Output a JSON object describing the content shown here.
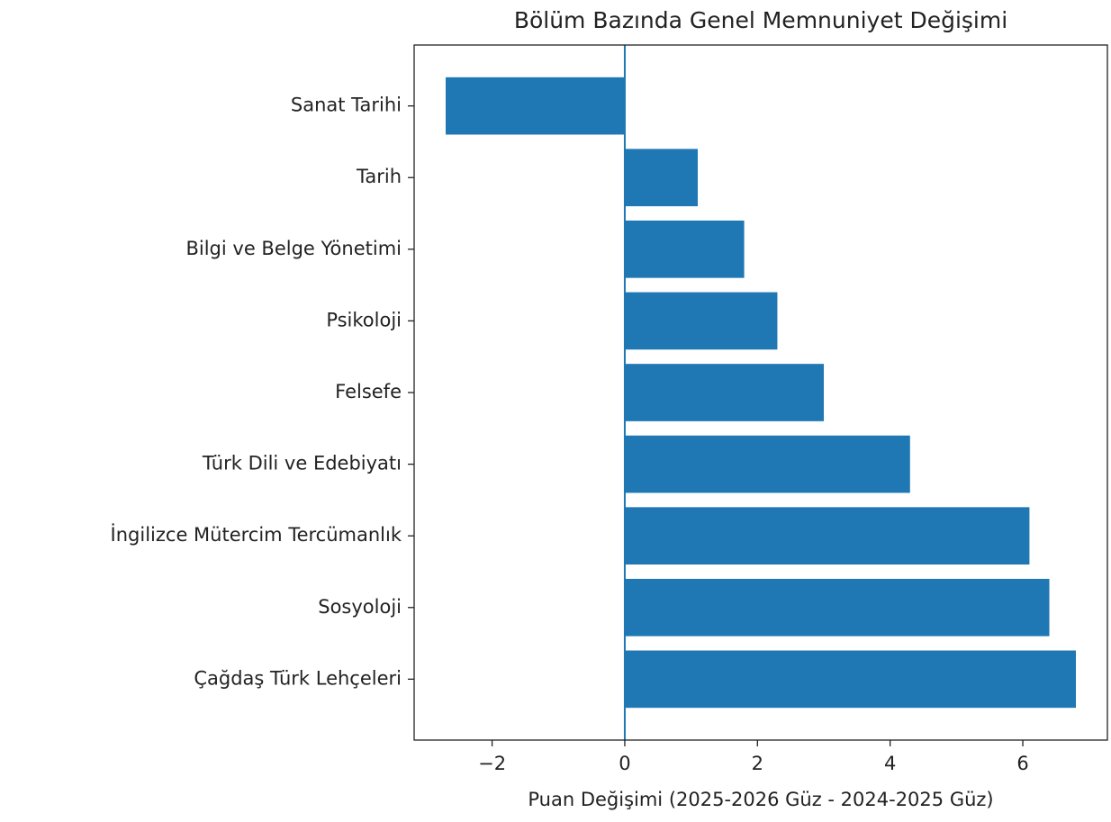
{
  "chart_data": {
    "type": "barh",
    "title": "Bölüm Bazında Genel Memnuniyet Değişimi",
    "x_label": "Puan Değişimi (2025-2026 Güz - 2024-2025 Güz)",
    "categories": [
      "Sanat Tarihi",
      "Tarih",
      "Bilgi ve Belge Yönetimi",
      "Psikoloji",
      "Felsefe",
      "Türk Dili ve Edebiyatı",
      "İngilizce Mütercim Tercümanlık",
      "Sosyoloji",
      "Çağdaş Türk Lehçeleri"
    ],
    "values": [
      -2.7,
      1.1,
      1.8,
      2.3,
      3.0,
      4.3,
      6.1,
      6.4,
      6.8
    ],
    "color": "#1f77b4",
    "xlim": [
      -3.175,
      7.275
    ],
    "xticks": [
      {
        "value": -2,
        "label": "−2"
      },
      0,
      2,
      4,
      6
    ],
    "grid": false
  }
}
